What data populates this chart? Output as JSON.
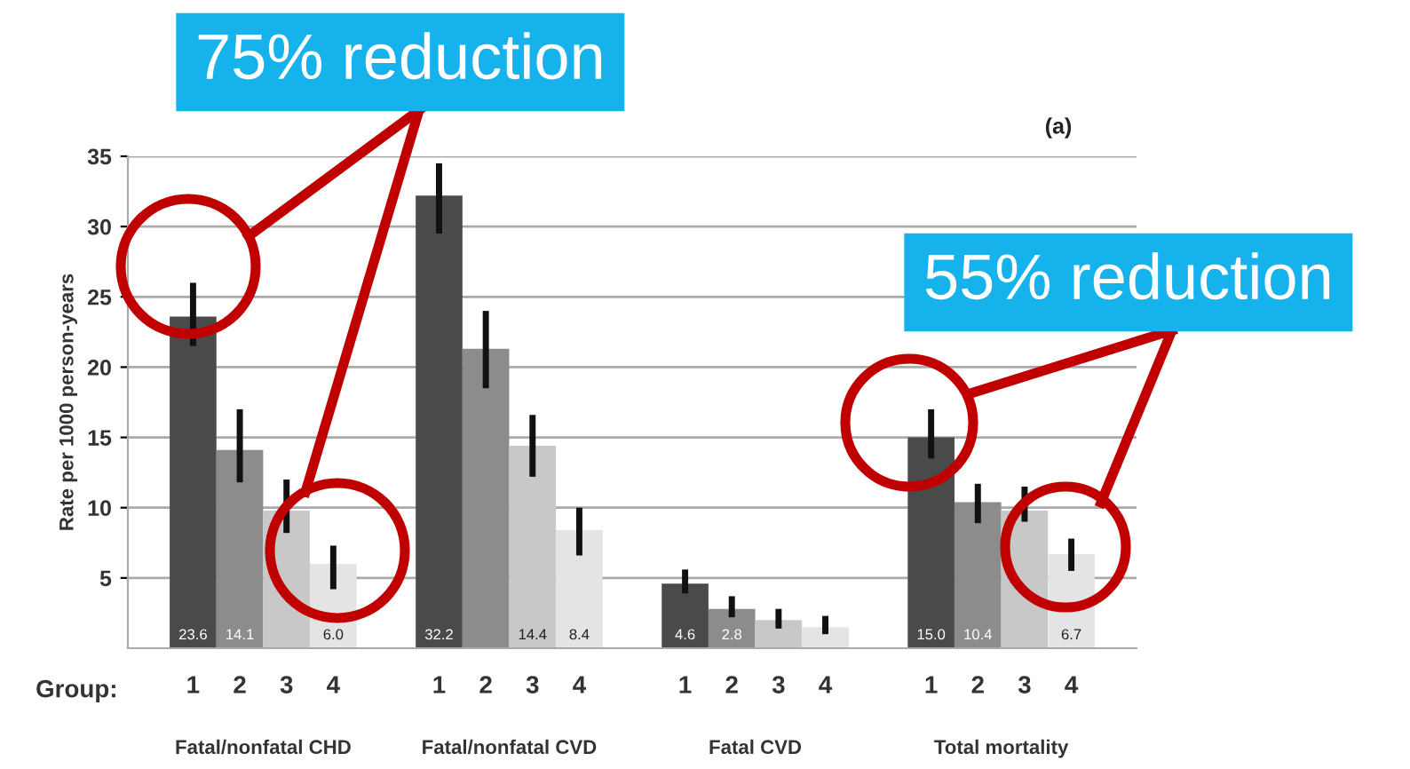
{
  "chart_data": {
    "type": "bar",
    "ylabel": "Rate per 1000 person-years",
    "categories": [
      "Fatal/nonfatal CHD",
      "Fatal/nonfatal CVD",
      "Fatal CVD",
      "Total mortality"
    ],
    "series": [
      {
        "name": "1",
        "color": "#4a4a4a",
        "values": [
          23.6,
          32.2,
          4.6,
          15.0
        ],
        "errors": [
          [
            21.5,
            26
          ],
          [
            29.5,
            34.5
          ],
          [
            3.9,
            5.6
          ],
          [
            13.5,
            17
          ]
        ],
        "value_labels": [
          "23.6",
          "32.2",
          "4.6",
          "15.0"
        ]
      },
      {
        "name": "2",
        "color": "#8c8c8c",
        "values": [
          14.1,
          21.3,
          2.8,
          10.4
        ],
        "errors": [
          [
            11.8,
            17
          ],
          [
            18.5,
            24
          ],
          [
            2.2,
            3.7
          ],
          [
            8.9,
            11.7
          ]
        ],
        "value_labels": [
          "14.1",
          null,
          "2.8",
          "10.4"
        ]
      },
      {
        "name": "3",
        "color": "#c8c8c8",
        "values": [
          9.8,
          14.4,
          2.0,
          9.8
        ],
        "errors": [
          [
            8.2,
            12
          ],
          [
            12.2,
            16.6
          ],
          [
            1.4,
            2.8
          ],
          [
            9.0,
            11.5
          ]
        ],
        "value_labels": [
          null,
          "14.4",
          null,
          null
        ]
      },
      {
        "name": "4",
        "color": "#e4e4e4",
        "values": [
          6.0,
          8.4,
          1.5,
          6.7
        ],
        "errors": [
          [
            4.2,
            7.3
          ],
          [
            6.6,
            10
          ],
          [
            1.0,
            2.3
          ],
          [
            5.5,
            7.8
          ]
        ],
        "value_labels": [
          "6.0",
          "8.4",
          null,
          "6.7"
        ]
      }
    ],
    "ylim": [
      0,
      35
    ],
    "yticks": [
      5,
      10,
      15,
      20,
      25,
      30,
      35
    ],
    "grid": "y",
    "legend": false,
    "annotations": [
      "75% reduction",
      "55% reduction",
      "(a)",
      "Group:"
    ]
  }
}
